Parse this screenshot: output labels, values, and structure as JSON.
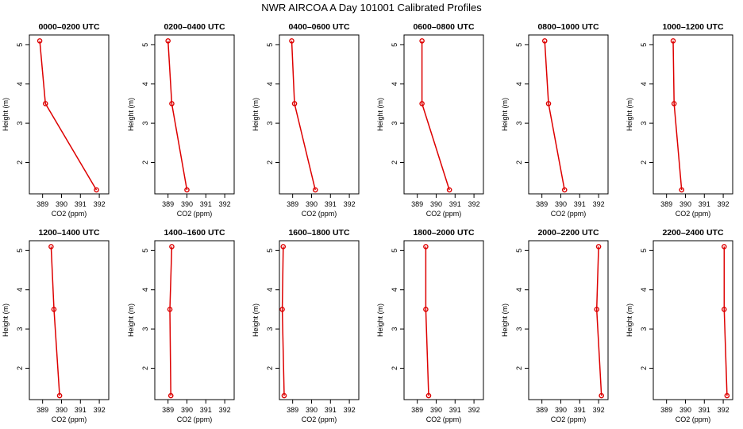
{
  "title": "NWR AIRCOA A  Day 101001  Calibrated Profiles",
  "chart_data": [
    {
      "type": "line",
      "title": "0000–0200 UTC",
      "xlabel": "CO2 (ppm)",
      "ylabel": "Height (m)",
      "xticks": [
        "389",
        "390",
        "391",
        "392"
      ],
      "yticks": [
        "2",
        "3",
        "4",
        "5"
      ],
      "xlim": [
        388.3,
        392.5
      ],
      "ylim": [
        1.2,
        5.25
      ],
      "x": [
        391.85,
        389.15,
        388.85
      ],
      "y": [
        1.3,
        3.5,
        5.1
      ]
    },
    {
      "type": "line",
      "title": "0200–0400 UTC",
      "xlabel": "CO2 (ppm)",
      "ylabel": "Height (m)",
      "xticks": [
        "389",
        "390",
        "391",
        "392"
      ],
      "yticks": [
        "2",
        "3",
        "4",
        "5"
      ],
      "xlim": [
        388.3,
        392.5
      ],
      "ylim": [
        1.2,
        5.25
      ],
      "x": [
        390.0,
        389.2,
        389.0
      ],
      "y": [
        1.3,
        3.5,
        5.1
      ]
    },
    {
      "type": "line",
      "title": "0400–0600 UTC",
      "xlabel": "CO2 (ppm)",
      "ylabel": "Height (m)",
      "xticks": [
        "389",
        "390",
        "391",
        "392"
      ],
      "yticks": [
        "2",
        "3",
        "4",
        "5"
      ],
      "xlim": [
        388.3,
        392.5
      ],
      "ylim": [
        1.2,
        5.25
      ],
      "x": [
        390.2,
        389.1,
        388.95
      ],
      "y": [
        1.3,
        3.5,
        5.1
      ]
    },
    {
      "type": "line",
      "title": "0600–0800 UTC",
      "xlabel": "CO2 (ppm)",
      "ylabel": "Height (m)",
      "xticks": [
        "389",
        "390",
        "391",
        "392"
      ],
      "yticks": [
        "2",
        "3",
        "4",
        "5"
      ],
      "xlim": [
        388.3,
        392.5
      ],
      "ylim": [
        1.2,
        5.25
      ],
      "x": [
        390.7,
        389.25,
        389.25
      ],
      "y": [
        1.3,
        3.5,
        5.1
      ]
    },
    {
      "type": "line",
      "title": "0800–1000 UTC",
      "xlabel": "CO2 (ppm)",
      "ylabel": "Height (m)",
      "xticks": [
        "389",
        "390",
        "391",
        "392"
      ],
      "yticks": [
        "2",
        "3",
        "4",
        "5"
      ],
      "xlim": [
        388.3,
        392.5
      ],
      "ylim": [
        1.2,
        5.25
      ],
      "x": [
        390.2,
        389.35,
        389.15
      ],
      "y": [
        1.3,
        3.5,
        5.1
      ]
    },
    {
      "type": "line",
      "title": "1000–1200 UTC",
      "xlabel": "CO2 (ppm)",
      "ylabel": "Height (m)",
      "xticks": [
        "389",
        "390",
        "391",
        "392"
      ],
      "yticks": [
        "2",
        "3",
        "4",
        "5"
      ],
      "xlim": [
        388.3,
        392.5
      ],
      "ylim": [
        1.2,
        5.25
      ],
      "x": [
        389.8,
        389.4,
        389.35
      ],
      "y": [
        1.3,
        3.5,
        5.1
      ]
    },
    {
      "type": "line",
      "title": "1200–1400 UTC",
      "xlabel": "CO2 (ppm)",
      "ylabel": "Height (m)",
      "xticks": [
        "389",
        "390",
        "391",
        "392"
      ],
      "yticks": [
        "2",
        "3",
        "4",
        "5"
      ],
      "xlim": [
        388.3,
        392.5
      ],
      "ylim": [
        1.2,
        5.25
      ],
      "x": [
        389.9,
        389.6,
        389.45
      ],
      "y": [
        1.3,
        3.5,
        5.1
      ]
    },
    {
      "type": "line",
      "title": "1400–1600 UTC",
      "xlabel": "CO2 (ppm)",
      "ylabel": "Height (m)",
      "xticks": [
        "389",
        "390",
        "391",
        "392"
      ],
      "yticks": [
        "2",
        "3",
        "4",
        "5"
      ],
      "xlim": [
        388.3,
        392.5
      ],
      "ylim": [
        1.2,
        5.25
      ],
      "x": [
        389.15,
        389.1,
        389.2
      ],
      "y": [
        1.3,
        3.5,
        5.1
      ]
    },
    {
      "type": "line",
      "title": "1600–1800 UTC",
      "xlabel": "CO2 (ppm)",
      "ylabel": "Height (m)",
      "xticks": [
        "389",
        "390",
        "391",
        "392"
      ],
      "yticks": [
        "2",
        "3",
        "4",
        "5"
      ],
      "xlim": [
        388.3,
        392.5
      ],
      "ylim": [
        1.2,
        5.25
      ],
      "x": [
        388.55,
        388.45,
        388.5
      ],
      "y": [
        1.3,
        3.5,
        5.1
      ]
    },
    {
      "type": "line",
      "title": "1800–2000 UTC",
      "xlabel": "CO2 (ppm)",
      "ylabel": "Height (m)",
      "xticks": [
        "389",
        "390",
        "391",
        "392"
      ],
      "yticks": [
        "2",
        "3",
        "4",
        "5"
      ],
      "xlim": [
        388.3,
        392.5
      ],
      "ylim": [
        1.2,
        5.25
      ],
      "x": [
        389.6,
        389.45,
        389.45
      ],
      "y": [
        1.3,
        3.5,
        5.1
      ]
    },
    {
      "type": "line",
      "title": "2000–2200 UTC",
      "xlabel": "CO2 (ppm)",
      "ylabel": "Height (m)",
      "xticks": [
        "389",
        "390",
        "391",
        "392"
      ],
      "yticks": [
        "2",
        "3",
        "4",
        "5"
      ],
      "xlim": [
        388.3,
        392.5
      ],
      "ylim": [
        1.2,
        5.25
      ],
      "x": [
        392.15,
        391.9,
        392.0
      ],
      "y": [
        1.3,
        3.5,
        5.1
      ]
    },
    {
      "type": "line",
      "title": "2200–2400 UTC",
      "xlabel": "CO2 (ppm)",
      "ylabel": "Height (m)",
      "xticks": [
        "389",
        "390",
        "391",
        "392"
      ],
      "yticks": [
        "2",
        "3",
        "4",
        "5"
      ],
      "xlim": [
        388.3,
        392.5
      ],
      "ylim": [
        1.2,
        5.25
      ],
      "x": [
        392.2,
        392.05,
        392.05
      ],
      "y": [
        1.3,
        3.5,
        5.1
      ]
    }
  ]
}
